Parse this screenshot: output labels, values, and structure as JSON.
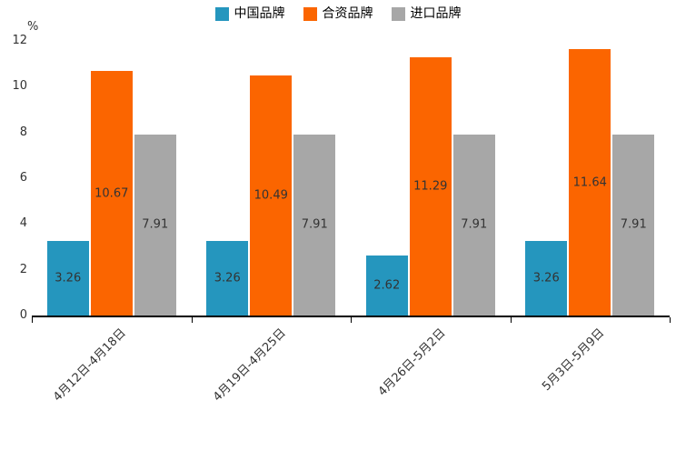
{
  "chart_data": {
    "type": "bar",
    "title": "",
    "unit_label": "%",
    "categories": [
      "4月12日-4月18日",
      "4月19日-4月25日",
      "4月26日-5月2日",
      "5月3日-5月9日"
    ],
    "series": [
      {
        "name": "中国品牌",
        "color": "#2596be",
        "values": [
          3.26,
          3.26,
          2.62,
          3.26
        ]
      },
      {
        "name": "合资品牌",
        "color": "#fb6500",
        "values": [
          10.67,
          10.49,
          11.29,
          11.64
        ]
      },
      {
        "name": "进口品牌",
        "color": "#a7a7a7",
        "values": [
          7.91,
          7.91,
          7.91,
          7.91
        ]
      }
    ],
    "value_labels": [
      [
        "3.26",
        "3.26",
        "2.62",
        "3.26"
      ],
      [
        "10.67",
        "10.49",
        "11.29",
        "11.64"
      ],
      [
        "7.91",
        "7.91",
        "7.91",
        "7.91"
      ]
    ],
    "y_ticks": [
      0,
      2,
      4,
      6,
      8,
      10,
      12
    ],
    "ylim": [
      0,
      12
    ],
    "legend_position": "top",
    "grid": false,
    "axis_color": "#000000",
    "label_color": "#333333"
  }
}
